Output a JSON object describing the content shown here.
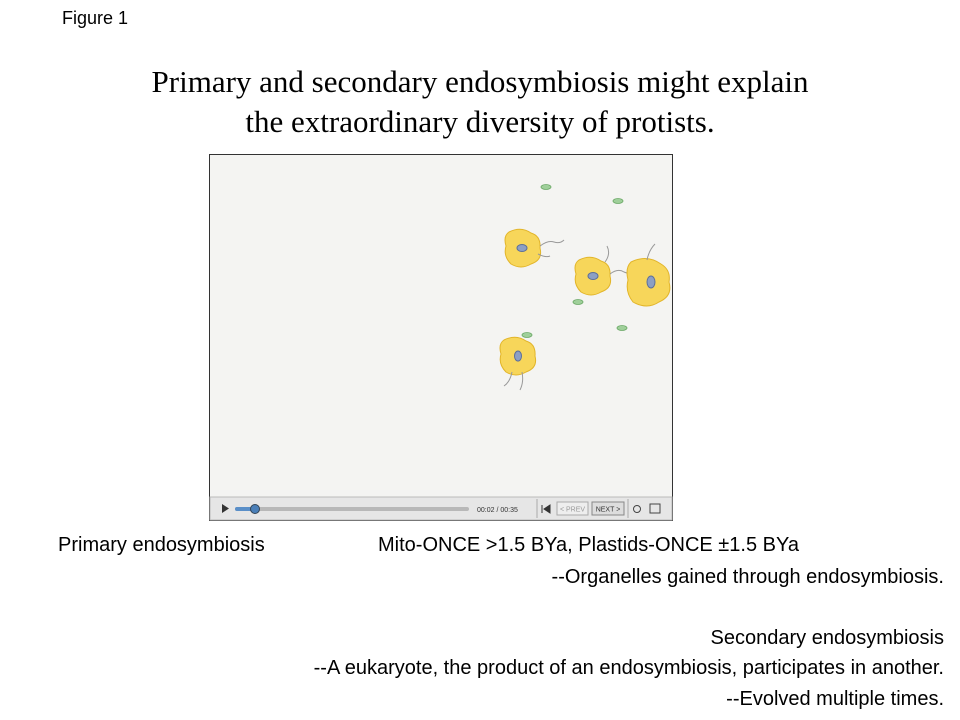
{
  "figure_label": "Figure 1",
  "title_lines": [
    "Primary and secondary endosymbiosis might explain",
    "the extraordinary diversity of protists."
  ],
  "video_player": {
    "time": "00:02 / 00:35",
    "prev": "< PREV",
    "next": "NEXT >"
  },
  "primary": {
    "heading": "Primary endosymbiosis",
    "dates": "Mito-ONCE >1.5 BYa,  Plastids-ONCE ±1.5 BYa",
    "note": "--Organelles gained through endosymbiosis."
  },
  "secondary": {
    "heading": "Secondary endosymbiosis",
    "notes": [
      "--A eukaryote, the product of an endosymbiosis, participates in another.",
      "--Evolved multiple times."
    ]
  }
}
